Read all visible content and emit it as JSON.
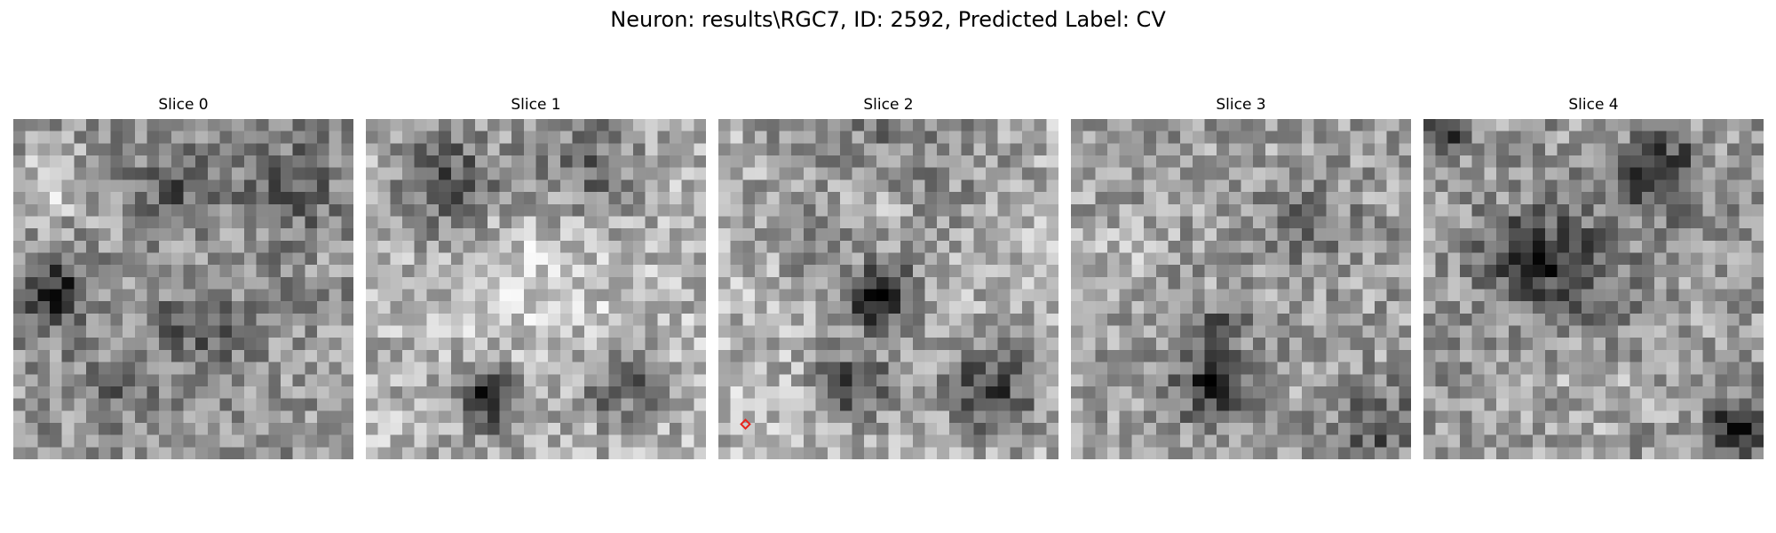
{
  "figure": {
    "title": "Neuron: results\\RGC7, ID: 2592, Predicted Label: CV"
  },
  "panels": [
    {
      "title": "Slice 0",
      "seed": 11,
      "base": 0.58,
      "blobs": [
        [
          0.12,
          0.52,
          0.07,
          -0.45
        ],
        [
          0.5,
          0.18,
          0.08,
          -0.25
        ],
        [
          0.82,
          0.2,
          0.09,
          -0.25
        ],
        [
          0.55,
          0.62,
          0.1,
          -0.2
        ],
        [
          0.3,
          0.78,
          0.07,
          -0.15
        ],
        [
          0.1,
          0.2,
          0.08,
          0.2
        ]
      ]
    },
    {
      "title": "Slice 1",
      "seed": 23,
      "base": 0.7,
      "blobs": [
        [
          0.5,
          0.14,
          0.5,
          -0.0
        ],
        [
          0.25,
          0.18,
          0.12,
          -0.35
        ],
        [
          0.65,
          0.14,
          0.12,
          -0.3
        ],
        [
          0.37,
          0.82,
          0.07,
          -0.55
        ],
        [
          0.75,
          0.78,
          0.08,
          -0.35
        ],
        [
          0.5,
          0.45,
          0.2,
          0.12
        ]
      ]
    },
    {
      "title": "Slice 2",
      "seed": 37,
      "base": 0.72,
      "blobs": [
        [
          0.48,
          0.52,
          0.06,
          -0.75
        ],
        [
          0.4,
          0.78,
          0.08,
          -0.45
        ],
        [
          0.8,
          0.8,
          0.1,
          -0.45
        ],
        [
          0.5,
          0.1,
          0.25,
          -0.25
        ],
        [
          0.3,
          0.38,
          0.07,
          -0.2
        ],
        [
          0.45,
          0.25,
          0.12,
          0.15
        ]
      ]
    },
    {
      "title": "Slice 3",
      "seed": 53,
      "base": 0.62,
      "blobs": [
        [
          0.42,
          0.78,
          0.07,
          -0.55
        ],
        [
          0.45,
          0.6,
          0.05,
          -0.25
        ],
        [
          0.9,
          0.9,
          0.08,
          -0.3
        ],
        [
          0.7,
          0.3,
          0.1,
          -0.15
        ],
        [
          0.15,
          0.4,
          0.08,
          0.1
        ]
      ]
    },
    {
      "title": "Slice 4",
      "seed": 71,
      "base": 0.6,
      "blobs": [
        [
          0.7,
          0.16,
          0.08,
          -0.45
        ],
        [
          0.3,
          0.4,
          0.09,
          -0.3
        ],
        [
          0.45,
          0.45,
          0.12,
          -0.25
        ],
        [
          0.92,
          0.9,
          0.06,
          -0.45
        ],
        [
          0.05,
          0.05,
          0.04,
          -0.5
        ],
        [
          0.5,
          0.8,
          0.1,
          0.1
        ]
      ]
    }
  ],
  "marker": {
    "panel": 2,
    "color": "#e8241c"
  }
}
